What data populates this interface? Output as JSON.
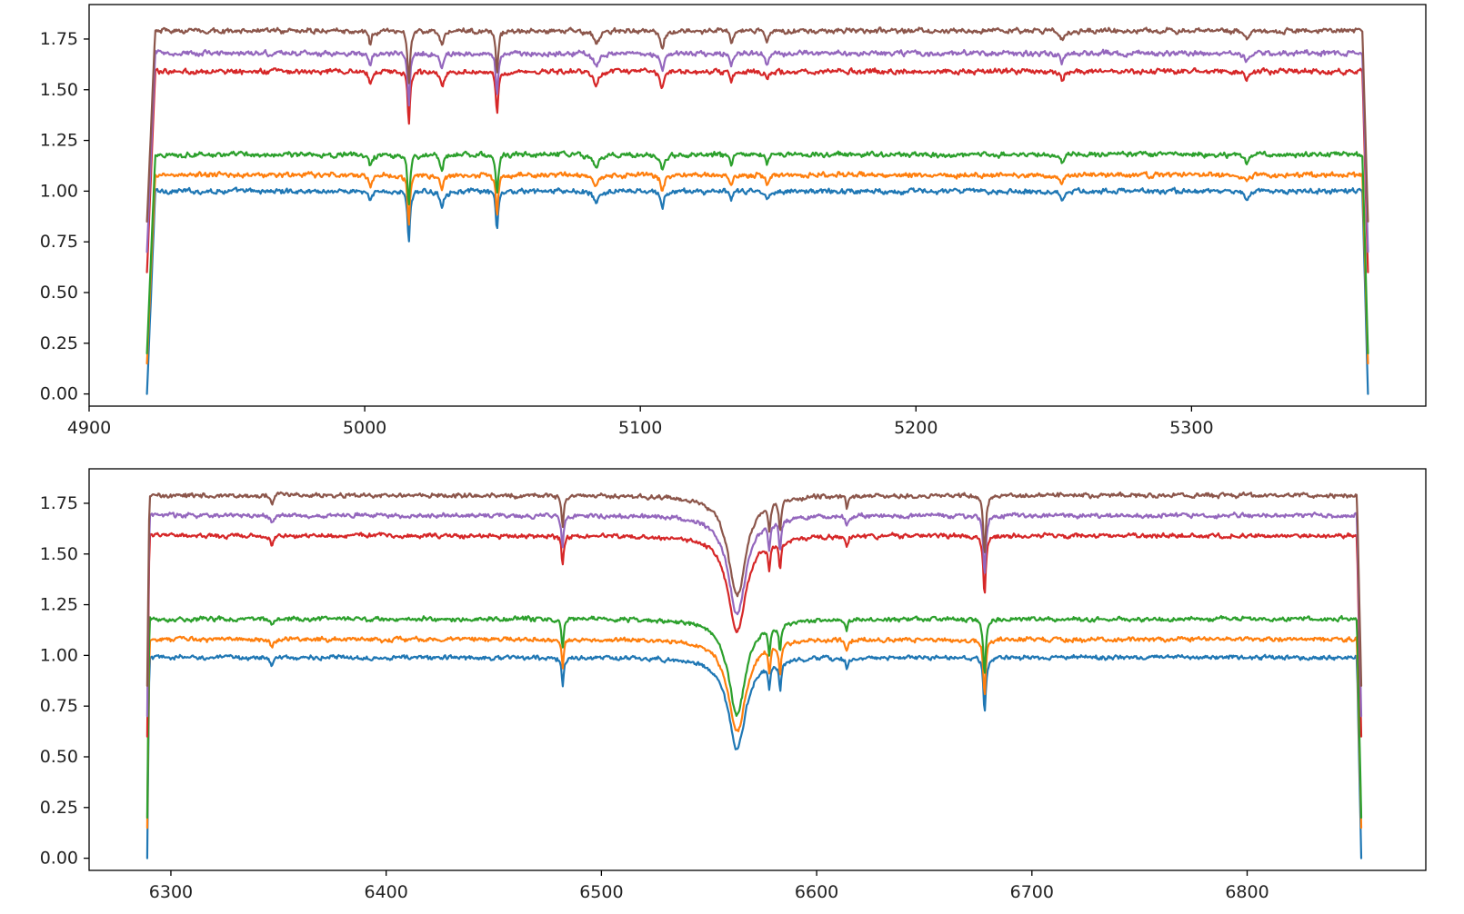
{
  "chart_data": [
    {
      "type": "line",
      "title": "",
      "xlabel": "",
      "ylabel": "",
      "xlim": [
        4900,
        5385
      ],
      "ylim": [
        -0.06,
        1.92
      ],
      "xticks": [
        4900,
        5000,
        5100,
        5200,
        5300
      ],
      "xtick_labels": [
        "4900",
        "5000",
        "5100",
        "5200",
        "5300"
      ],
      "yticks": [
        0.0,
        0.25,
        0.5,
        0.75,
        1.0,
        1.25,
        1.5,
        1.75
      ],
      "ytick_labels": [
        "0.00",
        "0.25",
        "0.50",
        "0.75",
        "1.00",
        "1.25",
        "1.50",
        "1.75"
      ],
      "grid": false,
      "x_range": [
        4921,
        5364
      ],
      "x_start_edge": 4924,
      "x_end_edge": 5362,
      "noise": 0.016,
      "series": [
        {
          "color": "#1f77b4",
          "baseline": 1.0,
          "edge_low": 0.0
        },
        {
          "color": "#ff7f0e",
          "baseline": 1.08,
          "edge_low": 0.15
        },
        {
          "color": "#2ca02c",
          "baseline": 1.18,
          "edge_low": 0.2
        },
        {
          "color": "#d62728",
          "baseline": 1.59,
          "edge_low": 0.6
        },
        {
          "color": "#9467bd",
          "baseline": 1.68,
          "edge_low": 0.7
        },
        {
          "color": "#8c564b",
          "baseline": 1.79,
          "edge_low": 0.85
        }
      ],
      "absorption_lines": [
        {
          "x": 5002,
          "depth": 0.06,
          "width": 0.6
        },
        {
          "x": 5016,
          "depth": 0.25,
          "width": 0.5
        },
        {
          "x": 5028,
          "depth": 0.07,
          "width": 0.8
        },
        {
          "x": 5048,
          "depth": 0.2,
          "width": 0.5
        },
        {
          "x": 5084,
          "depth": 0.06,
          "width": 1.2
        },
        {
          "x": 5108,
          "depth": 0.08,
          "width": 0.8
        },
        {
          "x": 5133,
          "depth": 0.05,
          "width": 0.6
        },
        {
          "x": 5146,
          "depth": 0.05,
          "width": 0.6
        },
        {
          "x": 5253,
          "depth": 0.04,
          "width": 0.8
        },
        {
          "x": 5320,
          "depth": 0.04,
          "width": 0.8
        }
      ]
    },
    {
      "type": "line",
      "title": "",
      "xlabel": "",
      "ylabel": "",
      "xlim": [
        6262,
        6883
      ],
      "ylim": [
        -0.06,
        1.92
      ],
      "xticks": [
        6300,
        6400,
        6500,
        6600,
        6700,
        6800
      ],
      "xtick_labels": [
        "6300",
        "6400",
        "6500",
        "6600",
        "6700",
        "6800"
      ],
      "yticks": [
        0.0,
        0.25,
        0.5,
        0.75,
        1.0,
        1.25,
        1.5,
        1.75
      ],
      "ytick_labels": [
        "0.00",
        "0.25",
        "0.50",
        "0.75",
        "1.00",
        "1.25",
        "1.50",
        "1.75"
      ],
      "grid": false,
      "x_range": [
        6289,
        6853
      ],
      "x_start_edge": 6290,
      "x_end_edge": 6851,
      "noise": 0.014,
      "series": [
        {
          "color": "#1f77b4",
          "baseline": 0.99,
          "edge_low": 0.0
        },
        {
          "color": "#ff7f0e",
          "baseline": 1.08,
          "edge_low": 0.15
        },
        {
          "color": "#2ca02c",
          "baseline": 1.18,
          "edge_low": 0.2
        },
        {
          "color": "#d62728",
          "baseline": 1.59,
          "edge_low": 0.6
        },
        {
          "color": "#9467bd",
          "baseline": 1.69,
          "edge_low": 0.7
        },
        {
          "color": "#8c564b",
          "baseline": 1.79,
          "edge_low": 0.85
        }
      ],
      "absorption_lines": [
        {
          "x": 6347,
          "depth": 0.04,
          "width": 0.8
        },
        {
          "x": 6482,
          "depth": 0.14,
          "width": 0.6
        },
        {
          "x": 6563,
          "depth": 0.45,
          "width": 5.0
        },
        {
          "x": 6578,
          "depth": 0.12,
          "width": 0.6
        },
        {
          "x": 6583,
          "depth": 0.14,
          "width": 0.6
        },
        {
          "x": 6614,
          "depth": 0.05,
          "width": 0.6
        },
        {
          "x": 6678,
          "depth": 0.27,
          "width": 0.7
        }
      ]
    }
  ]
}
